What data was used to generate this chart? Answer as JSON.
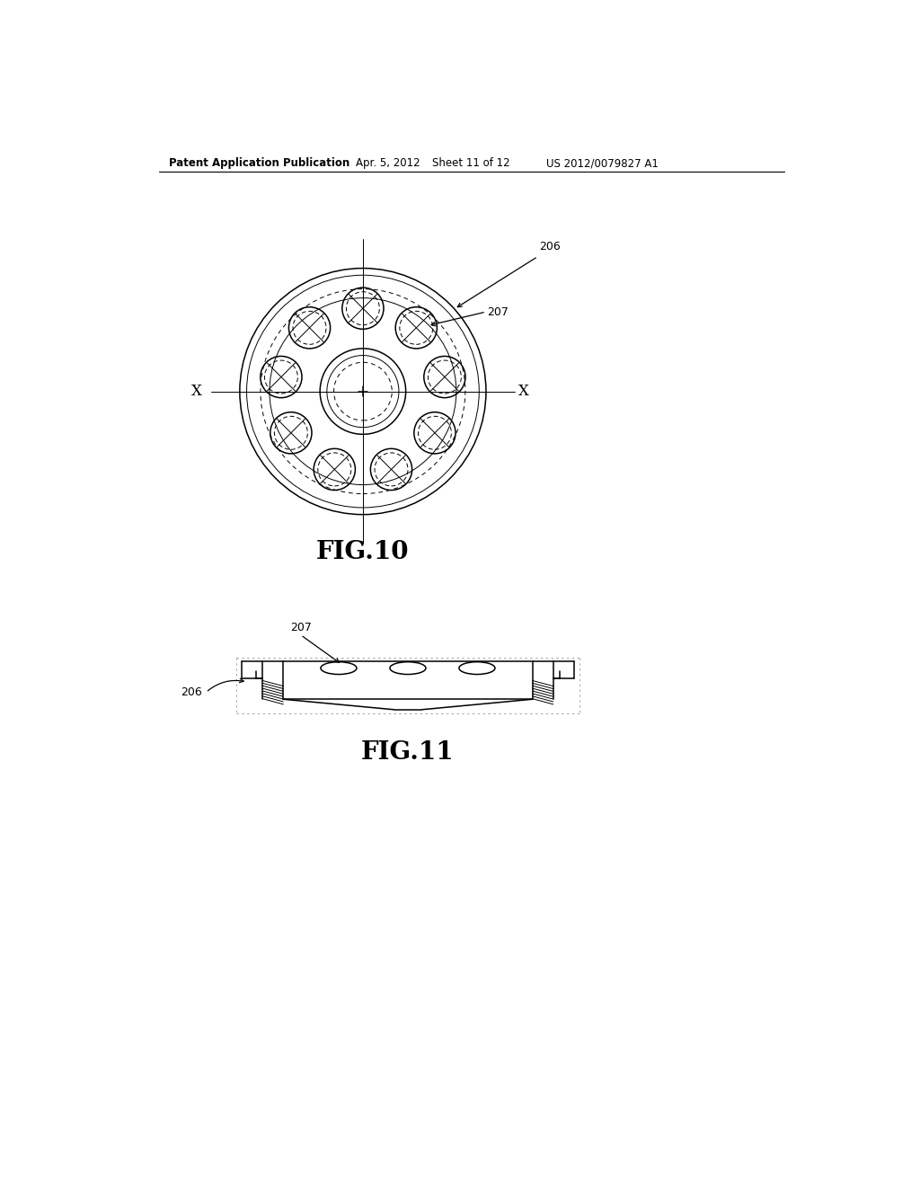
{
  "background_color": "#ffffff",
  "header_text": "Patent Application Publication",
  "header_date": "Apr. 5, 2012",
  "header_sheet": "Sheet 11 of 12",
  "header_patent": "US 2012/0079827 A1",
  "fig10_label": "FIG.10",
  "fig11_label": "FIG.11",
  "line_color": "#000000",
  "lw_thin": 0.7,
  "lw_medium": 1.1,
  "lw_thick": 1.6
}
